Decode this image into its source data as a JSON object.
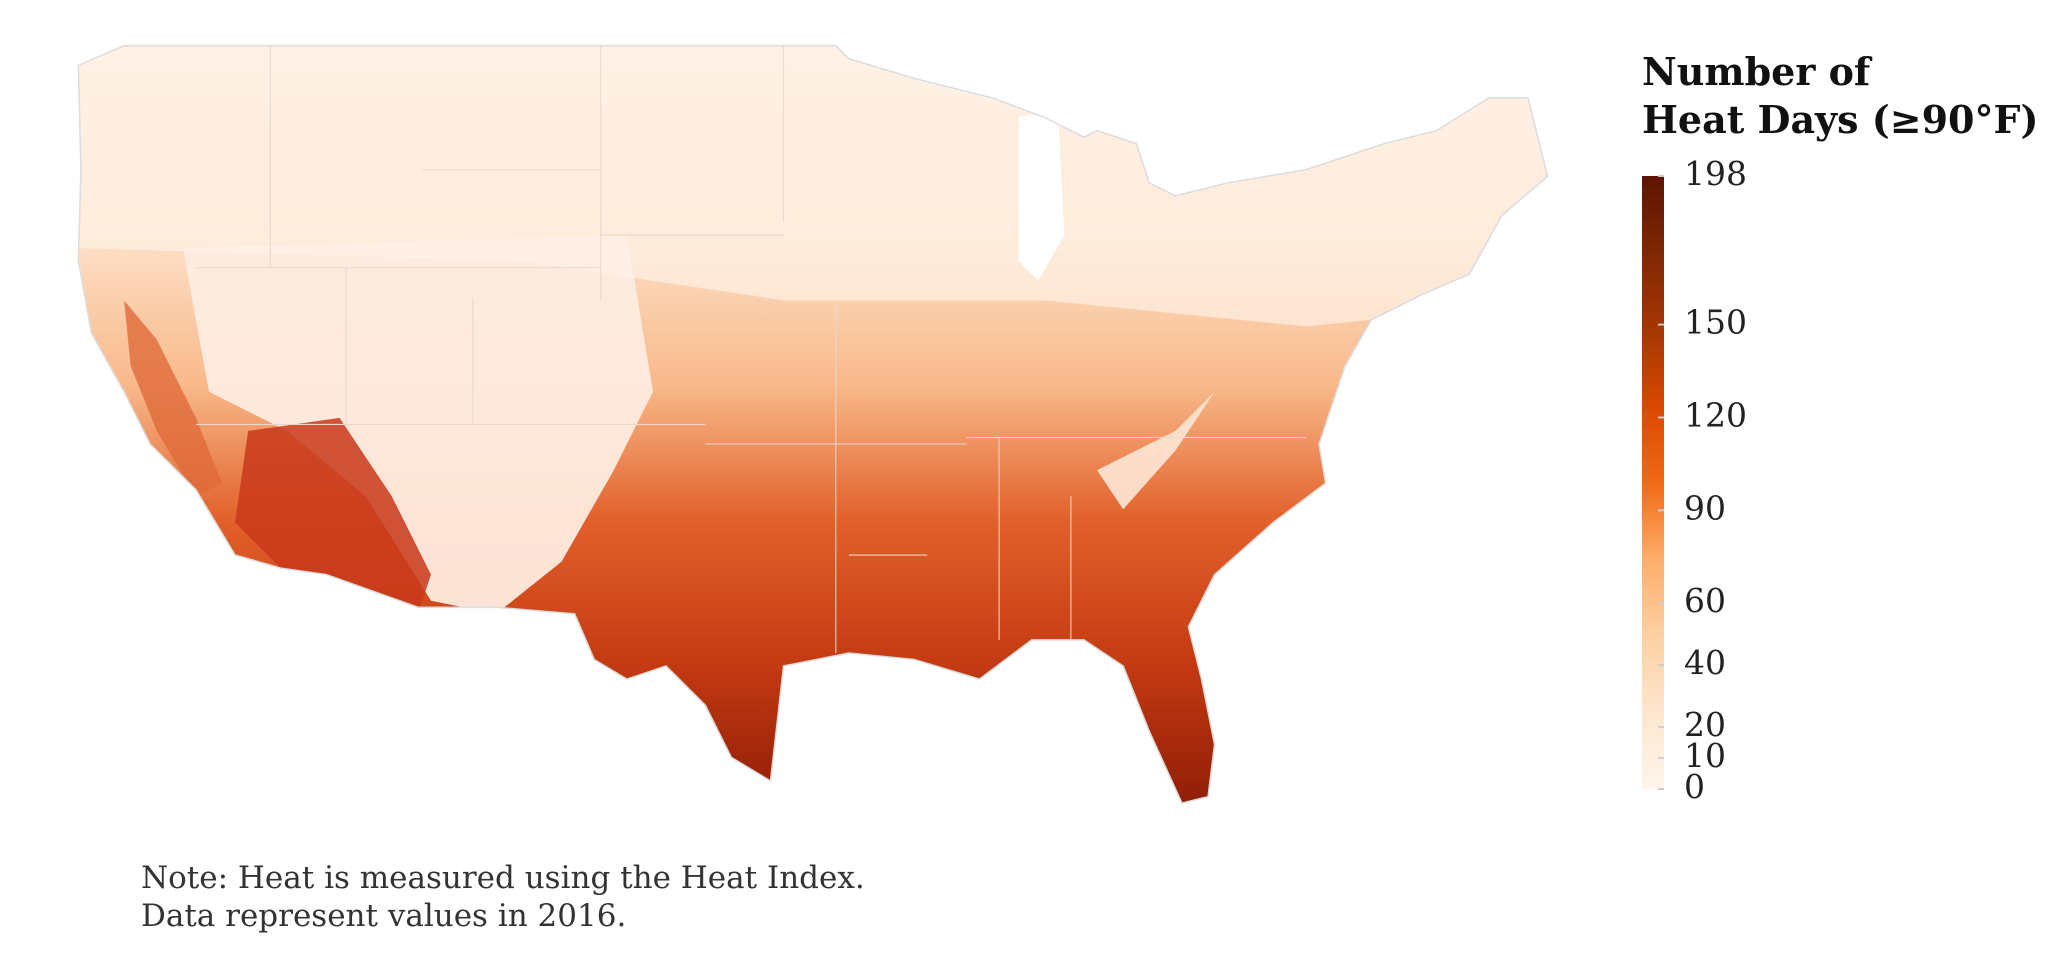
{
  "legend": {
    "title": [
      "Number of",
      "Heat Days (≥90°F)"
    ],
    "lim": [
      0,
      198
    ],
    "ticks": [
      0,
      10,
      20,
      40,
      60,
      90,
      120,
      150,
      198
    ],
    "colors": [
      "#fff5eb",
      "#fee6ce",
      "#fdd0a2",
      "#fdae6b",
      "#f16913",
      "#d94801",
      "#a63603",
      "#7f2704",
      "#5e1402"
    ]
  },
  "note": [
    "Note: Heat is measured using the Heat Index.",
    "Data represent values in 2016."
  ]
}
